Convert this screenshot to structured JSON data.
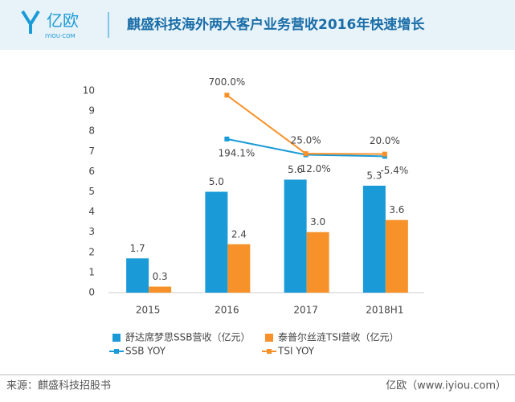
{
  "header": {
    "logo": "亿欧",
    "logo_sub": "IYIOU·COM"
  },
  "footer": {
    "source": "来源：麒盛科技招股书",
    "brand": "亿欧（www.iyiou.com）"
  },
  "chart_data": {
    "type": "bar",
    "title": "麒盛科技海外两大客户业务营收2016年快速增长",
    "categories": [
      "2015",
      "2016",
      "2017",
      "2018H1"
    ],
    "ylim": [
      0,
      10
    ],
    "yticks": [
      0,
      1,
      2,
      3,
      4,
      5,
      6,
      7,
      8,
      9,
      10
    ],
    "y2lim": [
      -1580,
      750
    ],
    "series": [
      {
        "name": "舒达席梦思SSB营收（亿元）",
        "type": "bar",
        "color": "#1a9bd7",
        "values": [
          1.7,
          5.0,
          5.6,
          5.3
        ],
        "value_labels": [
          "1.7",
          "5.0",
          "5.6",
          "5.3"
        ]
      },
      {
        "name": "泰普尔丝涟TSI营收（亿元）",
        "type": "bar",
        "color": "#f7922a",
        "values": [
          0.3,
          2.4,
          3.0,
          3.6
        ],
        "value_labels": [
          "0.3",
          "2.4",
          "3.0",
          "3.6"
        ]
      },
      {
        "name": "SSB YOY",
        "type": "line",
        "axis": "y2",
        "color": "#1a9bd7",
        "values": [
          null,
          194.1,
          12.0,
          -5.4
        ],
        "value_labels": [
          null,
          "194.1%",
          "12.0%",
          "-5.4%"
        ]
      },
      {
        "name": "TSI YOY",
        "type": "line",
        "axis": "y2",
        "color": "#f7922a",
        "values": [
          null,
          700.0,
          25.0,
          20.0
        ],
        "value_labels": [
          null,
          "700.0%",
          "25.0%",
          "20.0%"
        ]
      }
    ]
  }
}
